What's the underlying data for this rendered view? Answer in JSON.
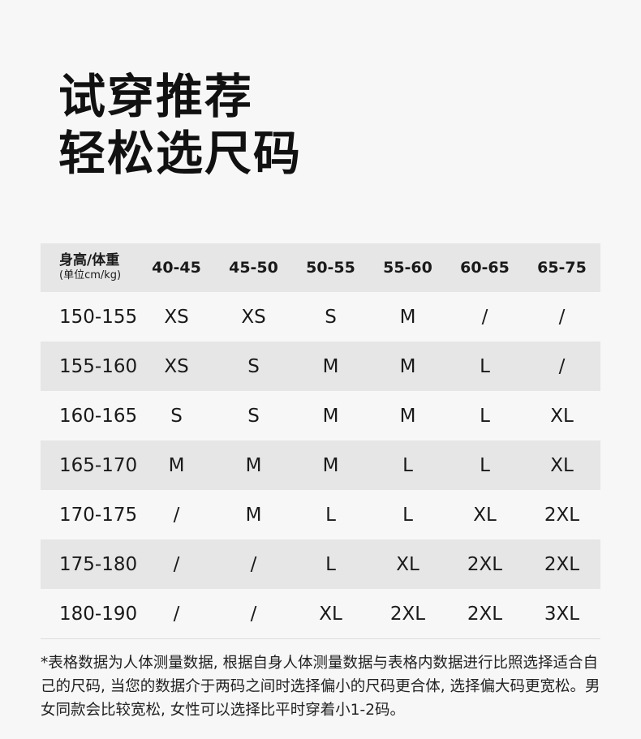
{
  "title": {
    "line1": "试穿推荐",
    "line2": "轻松选尺码"
  },
  "table": {
    "corner_main": "身高/体重",
    "corner_sub": "(单位cm/kg)",
    "columns": [
      "40-45",
      "45-50",
      "50-55",
      "55-60",
      "60-65",
      "65-75"
    ],
    "rows": [
      {
        "height": "150-155",
        "sizes": [
          "XS",
          "XS",
          "S",
          "M",
          "/",
          "/"
        ]
      },
      {
        "height": "155-160",
        "sizes": [
          "XS",
          "S",
          "M",
          "M",
          "L",
          "/"
        ]
      },
      {
        "height": "160-165",
        "sizes": [
          "S",
          "S",
          "M",
          "M",
          "L",
          "XL"
        ]
      },
      {
        "height": "165-170",
        "sizes": [
          "M",
          "M",
          "M",
          "L",
          "L",
          "XL"
        ]
      },
      {
        "height": "170-175",
        "sizes": [
          "/",
          "M",
          "L",
          "L",
          "XL",
          "2XL"
        ]
      },
      {
        "height": "175-180",
        "sizes": [
          "/",
          "/",
          "L",
          "XL",
          "2XL",
          "2XL"
        ]
      },
      {
        "height": "180-190",
        "sizes": [
          "/",
          "/",
          "XL",
          "2XL",
          "2XL",
          "3XL"
        ]
      }
    ]
  },
  "footnote": "*表格数据为人体测量数据, 根据自身人体测量数据与表格内数据进行比照选择适合自己的尺码, 当您的数据介于两码之间时选择偏小的尺码更合体, 选择偏大码更宽松。男女同款会比较宽松, 女性可以选择比平时穿着小1-2码。",
  "colors": {
    "background": "#f7f7f7",
    "row_shade": "#e6e6e6",
    "text": "#1a1a1a"
  }
}
